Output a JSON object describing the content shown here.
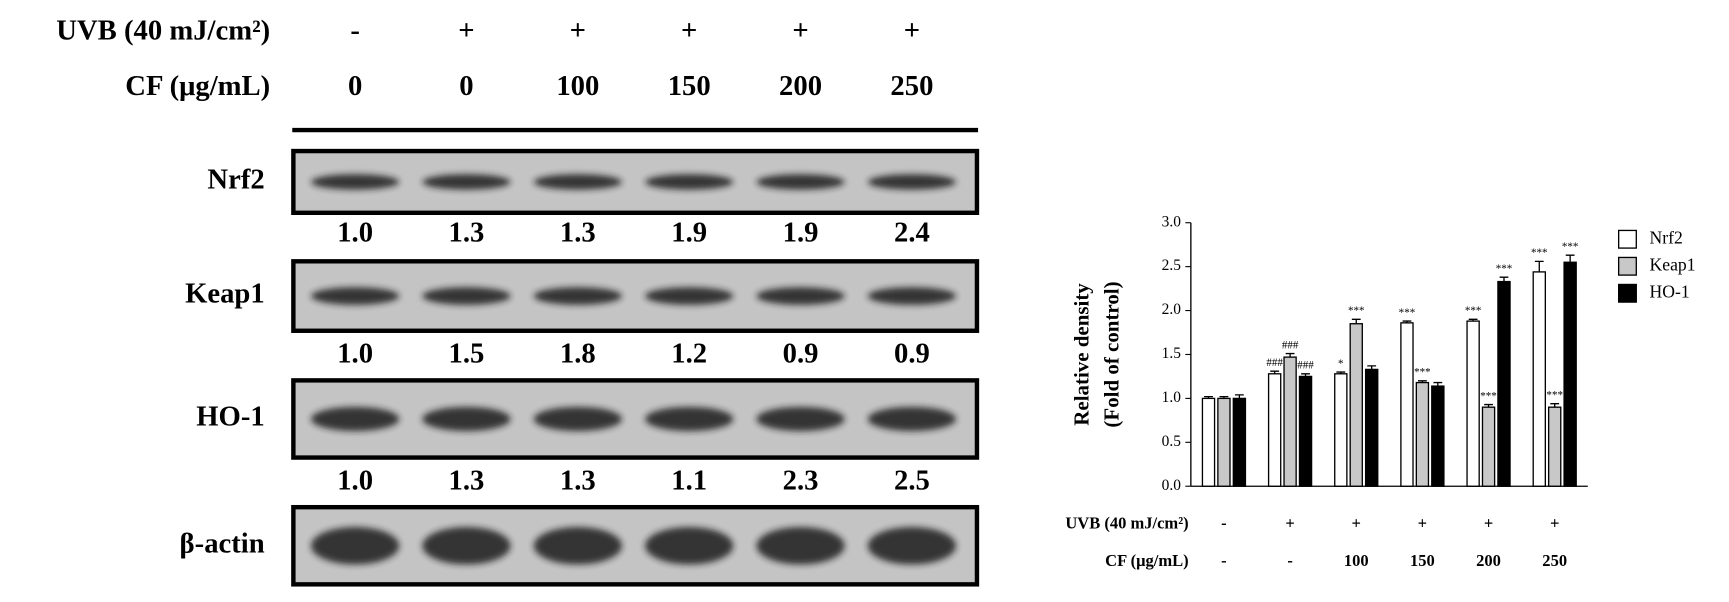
{
  "blot": {
    "conditions": [
      {
        "label": "UVB (40 mJ/cm²)",
        "values": [
          "-",
          "+",
          "+",
          "+",
          "+",
          "+"
        ]
      },
      {
        "label": "CF (μg/mL)",
        "values": [
          "0",
          "0",
          "100",
          "150",
          "200",
          "250"
        ]
      }
    ],
    "rows": [
      {
        "name": "Nrf2",
        "values": [
          "1.0",
          "1.3",
          "1.3",
          "1.9",
          "1.9",
          "2.4"
        ]
      },
      {
        "name": "Keap1",
        "values": [
          "1.0",
          "1.5",
          "1.8",
          "1.2",
          "0.9",
          "0.9"
        ]
      },
      {
        "name": "HO-1",
        "values": [
          "1.0",
          "1.3",
          "1.3",
          "1.1",
          "2.3",
          "2.5"
        ]
      },
      {
        "name": "β-actin"
      }
    ]
  },
  "chart_data": {
    "type": "bar",
    "y_label": [
      "Relative density",
      "(Fold of control)"
    ],
    "category_rows": [
      {
        "label": "UVB (40 mJ/cm²)",
        "values": [
          "-",
          "+",
          "+",
          "+",
          "+",
          "+"
        ]
      },
      {
        "label": "CF (μg/mL)",
        "values": [
          "-",
          "-",
          "100",
          "150",
          "200",
          "250"
        ]
      }
    ],
    "ylim": [
      0,
      3
    ],
    "yticks": [
      {
        "value": 0,
        "label": "0.0"
      },
      {
        "value": 0.5,
        "label": "0.5"
      },
      {
        "value": 1,
        "label": "1.0"
      },
      {
        "value": 1.5,
        "label": "1.5"
      },
      {
        "value": 2,
        "label": "2.0"
      },
      {
        "value": 2.5,
        "label": "2.5"
      },
      {
        "value": 3,
        "label": "3.0"
      }
    ],
    "legend": "top-right",
    "series": [
      {
        "name": "Nrf2",
        "color": "#ffffff",
        "values": [
          1.0,
          1.28,
          1.28,
          1.86,
          1.88,
          2.44
        ],
        "errors": [
          0.02,
          0.03,
          0.02,
          0.02,
          0.02,
          0.12
        ],
        "significance": [
          null,
          "###",
          "*",
          "***",
          "***",
          "***"
        ]
      },
      {
        "name": "Keap1",
        "color": "#c8c8c8",
        "values": [
          1.0,
          1.47,
          1.85,
          1.18,
          0.9,
          0.9
        ],
        "errors": [
          0.02,
          0.04,
          0.05,
          0.02,
          0.03,
          0.04
        ],
        "significance": [
          null,
          "###",
          "***",
          "***",
          "***",
          "***"
        ]
      },
      {
        "name": "HO-1",
        "color": "#000000",
        "values": [
          1.0,
          1.25,
          1.33,
          1.14,
          2.33,
          2.55
        ],
        "errors": [
          0.04,
          0.03,
          0.04,
          0.04,
          0.05,
          0.08
        ],
        "significance": [
          null,
          "###",
          null,
          null,
          "***",
          "***"
        ]
      }
    ]
  }
}
